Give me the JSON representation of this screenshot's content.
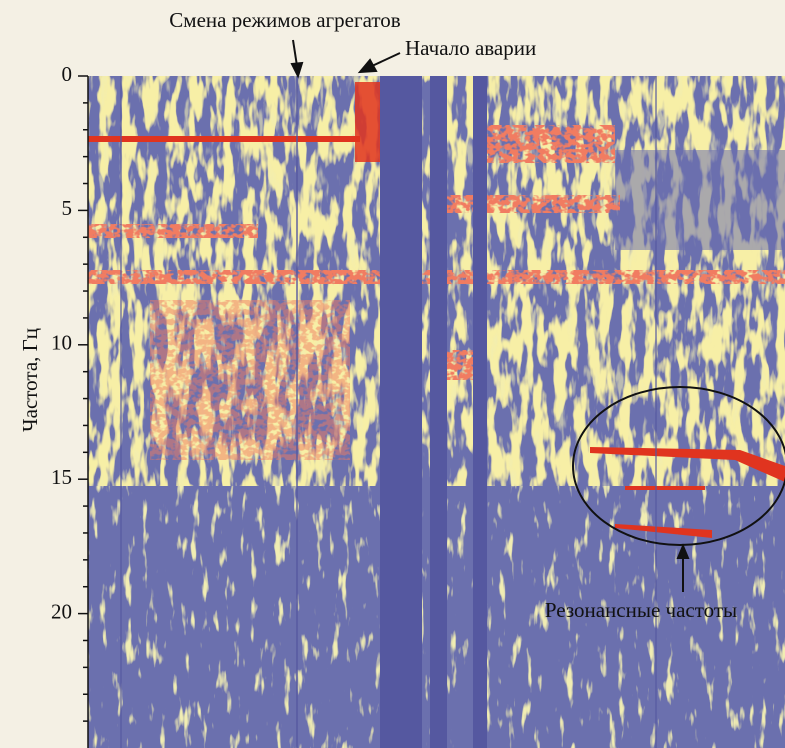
{
  "chart_data": {
    "type": "spectrogram",
    "ylabel": "Частота, Гц",
    "ylim": [
      0,
      25
    ],
    "yticks": [
      0,
      5,
      10,
      15,
      20
    ],
    "annotations": [
      "Смена режимов агрегатов",
      "Начало аварии",
      "Резонансные частоты"
    ]
  }
}
